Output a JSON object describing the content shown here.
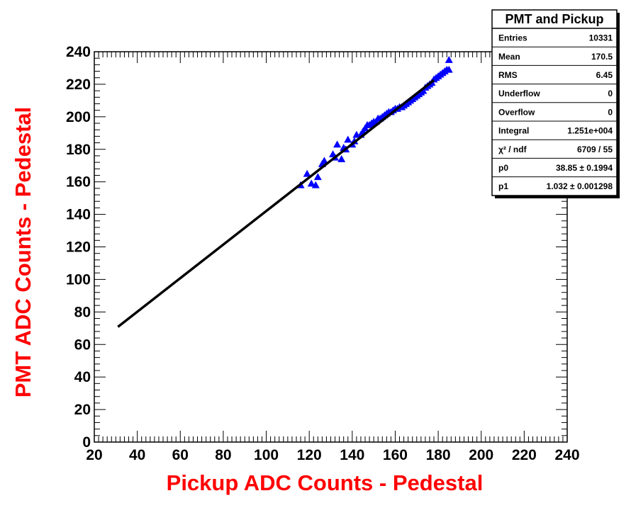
{
  "chart_data": {
    "type": "scatter",
    "xlabel": "Pickup ADC Counts - Pedestal",
    "ylabel": "PMT ADC Counts - Pedestal",
    "xlim": [
      20,
      240
    ],
    "ylim": [
      0,
      240
    ],
    "x_ticks": [
      20,
      40,
      60,
      80,
      100,
      120,
      140,
      160,
      180,
      200,
      220,
      240
    ],
    "y_ticks": [
      0,
      20,
      40,
      60,
      80,
      100,
      120,
      140,
      160,
      180,
      200,
      220,
      240
    ],
    "grid": false,
    "marker": "triangle-up",
    "colors": {
      "points": "#0000ff",
      "fit": "#000000",
      "axis_title": "#ff0000"
    },
    "points": [
      {
        "x": 116,
        "y": 158
      },
      {
        "x": 119,
        "y": 165
      },
      {
        "x": 121,
        "y": 159
      },
      {
        "x": 123,
        "y": 158
      },
      {
        "x": 124,
        "y": 163
      },
      {
        "x": 126,
        "y": 171
      },
      {
        "x": 127,
        "y": 173
      },
      {
        "x": 131,
        "y": 177
      },
      {
        "x": 132,
        "y": 175
      },
      {
        "x": 133,
        "y": 183
      },
      {
        "x": 135,
        "y": 174
      },
      {
        "x": 136,
        "y": 181
      },
      {
        "x": 137,
        "y": 180
      },
      {
        "x": 138,
        "y": 186
      },
      {
        "x": 140,
        "y": 183
      },
      {
        "x": 141,
        "y": 185
      },
      {
        "x": 142,
        "y": 189
      },
      {
        "x": 144,
        "y": 189
      },
      {
        "x": 145,
        "y": 191
      },
      {
        "x": 146,
        "y": 193
      },
      {
        "x": 147,
        "y": 195
      },
      {
        "x": 148,
        "y": 195
      },
      {
        "x": 149,
        "y": 196
      },
      {
        "x": 150,
        "y": 197
      },
      {
        "x": 151,
        "y": 197
      },
      {
        "x": 152,
        "y": 199
      },
      {
        "x": 153,
        "y": 199
      },
      {
        "x": 154,
        "y": 200
      },
      {
        "x": 155,
        "y": 201
      },
      {
        "x": 156,
        "y": 202
      },
      {
        "x": 157,
        "y": 203
      },
      {
        "x": 158,
        "y": 203
      },
      {
        "x": 159,
        "y": 204
      },
      {
        "x": 160,
        "y": 205
      },
      {
        "x": 161,
        "y": 205
      },
      {
        "x": 162,
        "y": 206
      },
      {
        "x": 163,
        "y": 206
      },
      {
        "x": 164,
        "y": 207
      },
      {
        "x": 165,
        "y": 208
      },
      {
        "x": 166,
        "y": 209
      },
      {
        "x": 167,
        "y": 210
      },
      {
        "x": 168,
        "y": 211
      },
      {
        "x": 169,
        "y": 212
      },
      {
        "x": 170,
        "y": 213
      },
      {
        "x": 171,
        "y": 214
      },
      {
        "x": 172,
        "y": 215
      },
      {
        "x": 173,
        "y": 216
      },
      {
        "x": 174,
        "y": 218
      },
      {
        "x": 175,
        "y": 219
      },
      {
        "x": 176,
        "y": 220
      },
      {
        "x": 177,
        "y": 221
      },
      {
        "x": 178,
        "y": 223
      },
      {
        "x": 179,
        "y": 224
      },
      {
        "x": 180,
        "y": 225
      },
      {
        "x": 181,
        "y": 226
      },
      {
        "x": 182,
        "y": 227
      },
      {
        "x": 183,
        "y": 228
      },
      {
        "x": 184,
        "y": 229
      },
      {
        "x": 185,
        "y": 229
      },
      {
        "x": 185,
        "y": 235
      }
    ],
    "fit_line": {
      "p0": 38.85,
      "p1": 1.032,
      "x_range": [
        31,
        178
      ]
    },
    "stats_box": {
      "title": "PMT and Pickup",
      "rows": [
        {
          "label": "Entries",
          "value": "10331"
        },
        {
          "label": "Mean",
          "value": "170.5"
        },
        {
          "label": "RMS",
          "value": "6.45"
        },
        {
          "label": "Underflow",
          "value": "0"
        },
        {
          "label": "Overflow",
          "value": "0"
        },
        {
          "label": "Integral",
          "value": "1.251e+004"
        },
        {
          "label": "χ² / ndf",
          "value": "6709 / 55"
        },
        {
          "label": "p0",
          "value": "38.85 ± 0.1994"
        },
        {
          "label": "p1",
          "value": "1.032 ± 0.001298"
        }
      ],
      "placement": "top-right"
    }
  }
}
